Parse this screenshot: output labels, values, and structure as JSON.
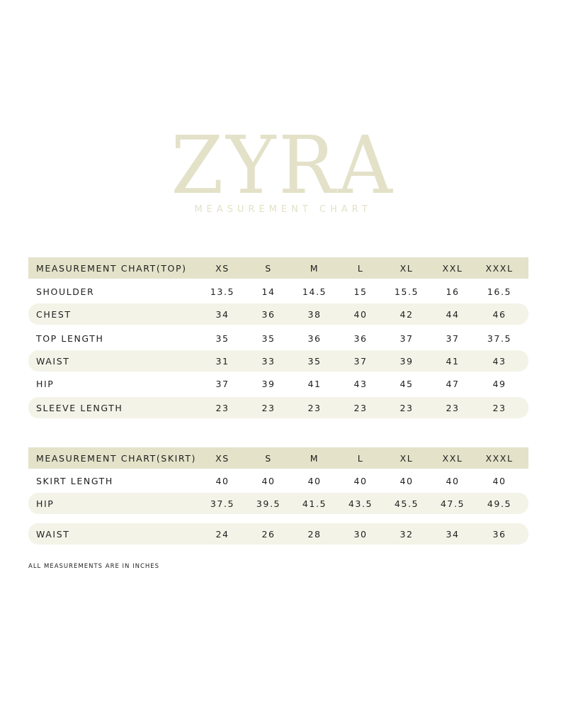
{
  "brand": "ZYRA",
  "subtitle": "MEASUREMENT CHART",
  "top_table": {
    "title": "MEASUREMENT CHART(TOP)",
    "sizes": [
      "XS",
      "S",
      "M",
      "L",
      "XL",
      "XXL",
      "XXXL"
    ],
    "rows": [
      {
        "label": "SHOULDER",
        "values": [
          "13.5",
          "14",
          "14.5",
          "15",
          "15.5",
          "16",
          "16.5"
        ]
      },
      {
        "label": "CHEST",
        "values": [
          "34",
          "36",
          "38",
          "40",
          "42",
          "44",
          "46"
        ]
      },
      {
        "label": "TOP LENGTH",
        "values": [
          "35",
          "35",
          "36",
          "36",
          "37",
          "37",
          "37.5"
        ]
      },
      {
        "label": "WAIST",
        "values": [
          "31",
          "33",
          "35",
          "37",
          "39",
          "41",
          "43"
        ]
      },
      {
        "label": "HIP",
        "values": [
          "37",
          "39",
          "41",
          "43",
          "45",
          "47",
          "49"
        ]
      },
      {
        "label": "SLEEVE LENGTH",
        "values": [
          "23",
          "23",
          "23",
          "23",
          "23",
          "23",
          "23"
        ]
      }
    ]
  },
  "skirt_table": {
    "title": "MEASUREMENT CHART(SKIRT)",
    "sizes": [
      "XS",
      "S",
      "M",
      "L",
      "XL",
      "XXL",
      "XXXL"
    ],
    "rows": [
      {
        "label": "SKIRT LENGTH",
        "values": [
          "40",
          "40",
          "40",
          "40",
          "40",
          "40",
          "40"
        ]
      },
      {
        "label": "HIP",
        "values": [
          "37.5",
          "39.5",
          "41.5",
          "43.5",
          "45.5",
          "47.5",
          "49.5"
        ]
      },
      {
        "label": "WAIST",
        "values": [
          "24",
          "26",
          "28",
          "30",
          "32",
          "34",
          "36"
        ]
      }
    ]
  },
  "note": "ALL MEASUREMENTS ARE IN INCHES"
}
